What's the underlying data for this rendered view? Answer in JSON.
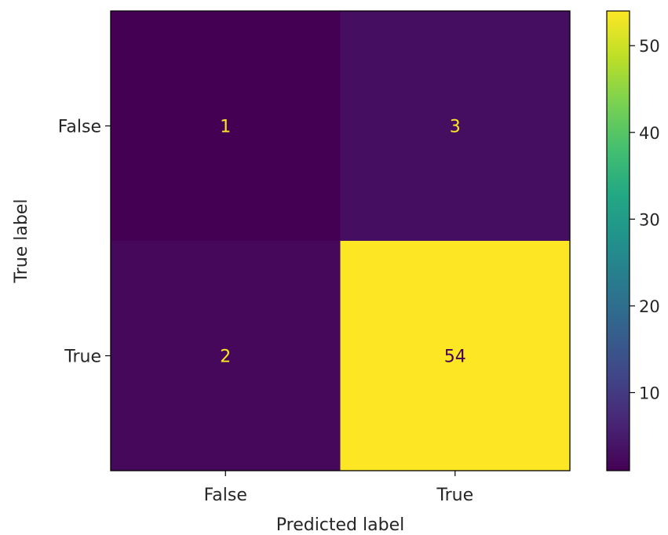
{
  "chart_data": {
    "type": "heatmap",
    "title": "",
    "xlabel": "Predicted label",
    "ylabel": "True label",
    "x_categories": [
      "False",
      "True"
    ],
    "y_categories": [
      "False",
      "True"
    ],
    "values": [
      [
        1,
        3
      ],
      [
        2,
        54
      ]
    ],
    "colormap": "viridis",
    "colorbar": {
      "min": 1,
      "max": 54,
      "ticks": [
        10,
        20,
        30,
        40,
        50
      ]
    },
    "text_colors": {
      "light": "#fde725",
      "dark": "#440154"
    }
  }
}
